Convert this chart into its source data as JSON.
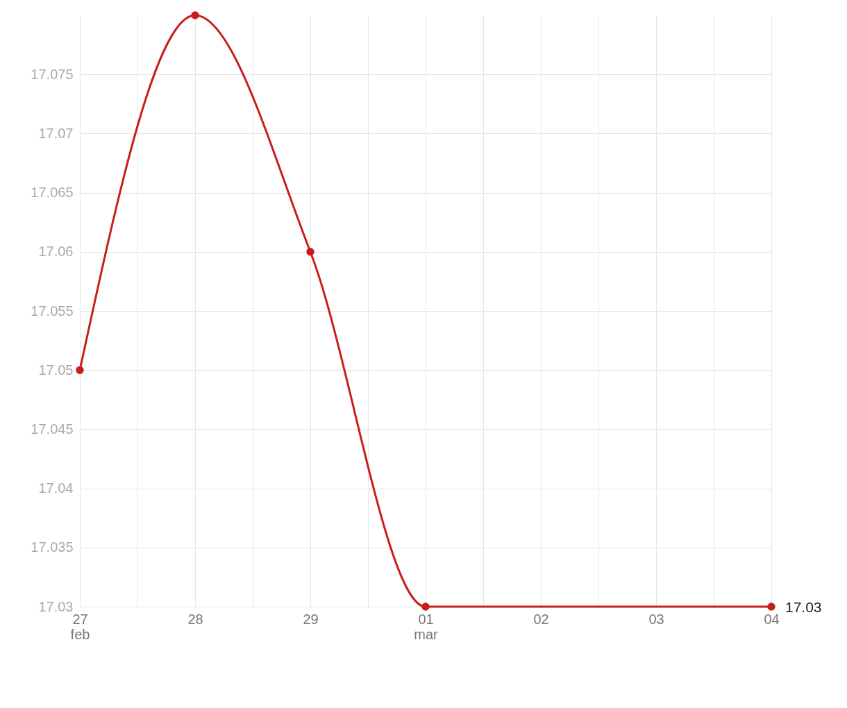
{
  "chart_data": {
    "type": "line",
    "x": [
      "--02-27",
      "--02-28",
      "--02-29",
      "--03-01",
      "--03-04"
    ],
    "series": [
      {
        "color": "#c71e1d",
        "values": [
          17.05,
          17.08,
          17.06,
          17.03,
          17.03
        ],
        "value_labels": [
          null,
          null,
          null,
          null,
          "17.03"
        ]
      }
    ],
    "xlim": [
      "--02-27",
      "--03-04"
    ],
    "xticks": [
      {
        "value": "--02-27",
        "label": "27\nfeb"
      },
      {
        "value": "--02-27T12:00",
        "label": null
      },
      {
        "value": "--02-28",
        "label": "28"
      },
      {
        "value": "--02-28T12:00",
        "label": null
      },
      {
        "value": "--02-29",
        "label": "29"
      },
      {
        "value": "--02-29T12:00",
        "label": null
      },
      {
        "value": "--03-01",
        "label": "01\nmar"
      },
      {
        "value": "--03-01T12:00",
        "label": null
      },
      {
        "value": "--03-02",
        "label": "02"
      },
      {
        "value": "--03-02T12:00",
        "label": null
      },
      {
        "value": "--03-03",
        "label": "03"
      },
      {
        "value": "--03-03T12:00",
        "label": null
      },
      {
        "value": "--03-04",
        "label": "04"
      }
    ],
    "ylim": [
      17.03,
      17.08
    ],
    "yticks": [
      17.03,
      17.035,
      17.04,
      17.045,
      17.05,
      17.055,
      17.06,
      17.065,
      17.07,
      17.075
    ],
    "grid": true,
    "marker": "circle",
    "line_style": "solid"
  }
}
